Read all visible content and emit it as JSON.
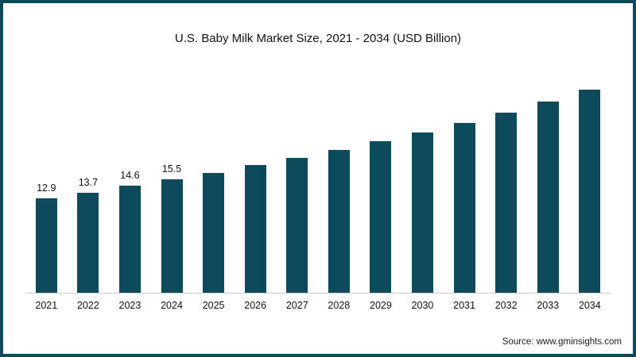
{
  "title": "U.S. Baby Milk Market Size, 2021 - 2034 (USD Billion)",
  "source": "Source: www.gminsights.com",
  "colors": {
    "bar": "#0d4a5c",
    "frame": "#0d4a5c",
    "axis": "#cccccc"
  },
  "chart_data": {
    "type": "bar",
    "title": "U.S. Baby Milk Market Size, 2021 - 2034 (USD Billion)",
    "xlabel": "",
    "ylabel": "",
    "ylim": [
      0,
      30
    ],
    "grid": false,
    "legend": "none",
    "categories": [
      "2021",
      "2022",
      "2023",
      "2024",
      "2025",
      "2026",
      "2027",
      "2028",
      "2029",
      "2030",
      "2031",
      "2032",
      "2033",
      "2034"
    ],
    "values": [
      12.9,
      13.7,
      14.6,
      15.5,
      16.4,
      17.4,
      18.4,
      19.5,
      20.7,
      21.9,
      23.2,
      24.6,
      26.1,
      27.7
    ],
    "data_labels": [
      "12.9",
      "13.7",
      "14.6",
      "15.5",
      "",
      "",
      "",
      "",
      "",
      "",
      "",
      "",
      "",
      ""
    ]
  }
}
